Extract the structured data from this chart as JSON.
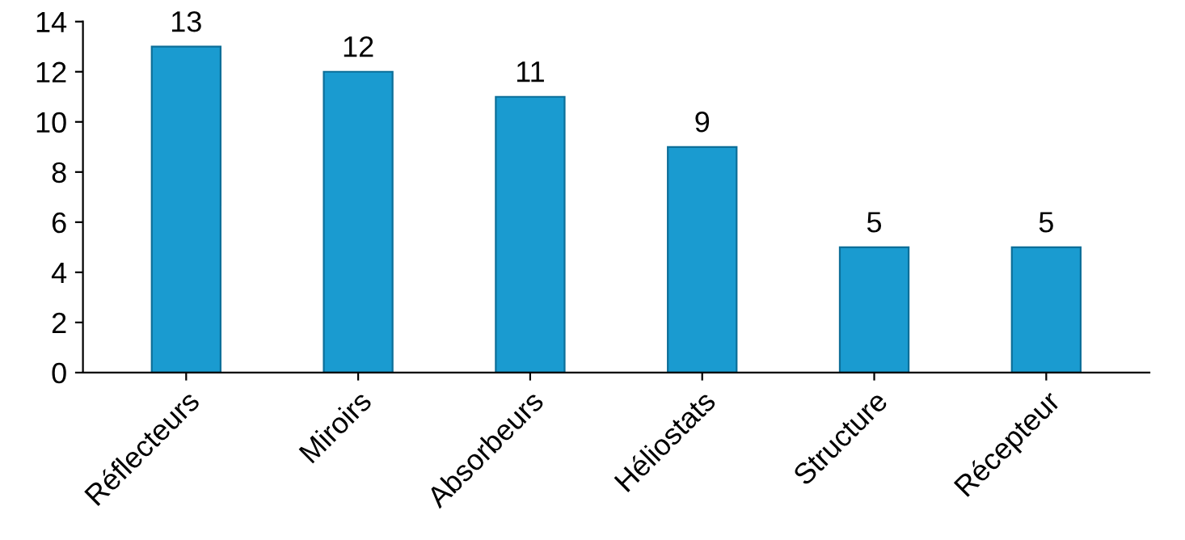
{
  "chart_data": {
    "type": "bar",
    "categories": [
      "Réflecteurs",
      "Miroirs",
      "Absorbeurs",
      "Héliostats",
      "Structure",
      "Récepteur"
    ],
    "values": [
      13,
      12,
      11,
      9,
      5,
      5
    ],
    "color": "#1a9bd0",
    "ylim": [
      0,
      14
    ],
    "yticks": [
      0,
      2,
      4,
      6,
      8,
      10,
      12,
      14
    ],
    "grid": false,
    "data_labels": true
  }
}
